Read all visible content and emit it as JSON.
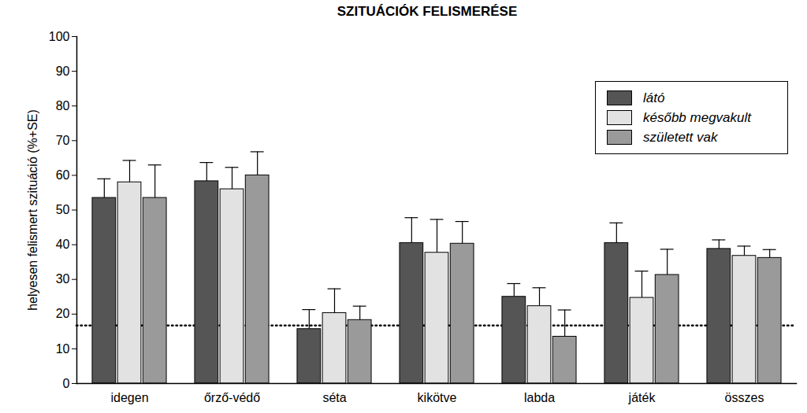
{
  "chart_data": {
    "type": "bar",
    "title": "SZITUÁCIÓK FELISMERÉSE",
    "y_label": "helyesen felismert szituáció (%+SE)",
    "categories": [
      "idegen",
      "őrző-védő",
      "séta",
      "kikötve",
      "labda",
      "játék",
      "összes"
    ],
    "series": [
      {
        "name": "látó",
        "color": "#555555",
        "values": [
          53.5,
          58.3,
          15.7,
          40.5,
          25,
          40.5,
          38.8
        ],
        "errors": [
          5.5,
          5.4,
          5.6,
          7.3,
          3.8,
          5.8,
          2.6
        ]
      },
      {
        "name": "később megvakult",
        "color": "#e2e2e2",
        "values": [
          58,
          56,
          20.3,
          37.7,
          22.3,
          24.7,
          36.8
        ],
        "errors": [
          6.3,
          6.3,
          7,
          9.6,
          5.3,
          7.7,
          2.8
        ]
      },
      {
        "name": "született vak",
        "color": "#9a9a9a",
        "values": [
          53.5,
          60,
          18.3,
          40.3,
          13.5,
          31.3,
          36.2
        ],
        "errors": [
          9.5,
          6.8,
          4,
          6.4,
          7.7,
          7.4,
          2.4
        ]
      }
    ],
    "ylim": [
      0,
      100
    ],
    "yticks": [
      0,
      10,
      20,
      30,
      40,
      50,
      60,
      70,
      80,
      90,
      100
    ],
    "reference_line": 16.7,
    "legend": "upper right"
  }
}
